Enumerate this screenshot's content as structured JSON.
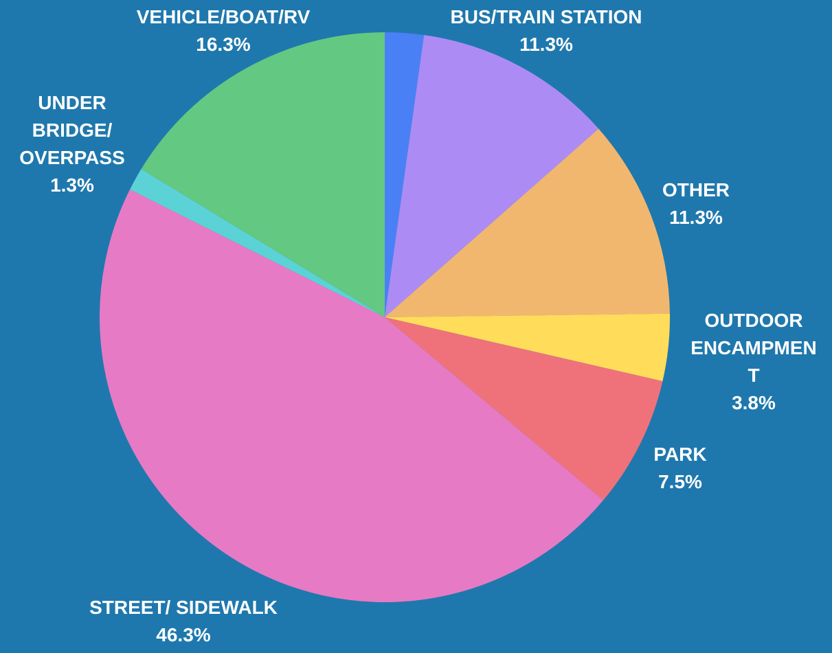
{
  "chart_data": {
    "type": "pie",
    "categories": [
      null,
      "BUS/TRAIN STATION",
      "OTHER",
      "OUTDOOR\nENCAMPMEN\nT",
      "PARK",
      "STREET/ SIDEWALK",
      "UNDER\nBRIDGE/\nOVERPASS",
      "VEHICLE/BOAT/RV"
    ],
    "values": [
      2.2,
      11.3,
      11.3,
      3.8,
      7.5,
      46.3,
      1.3,
      16.3
    ],
    "value_labels": [
      null,
      "11.3%",
      "11.3%",
      "3.8%",
      "7.5%",
      "46.3%",
      "1.3%",
      "16.3%"
    ],
    "colors": [
      "#4a80f5",
      "#ac8cf4",
      "#f2b76e",
      "#ffdd5a",
      "#ef727a",
      "#e77ac4",
      "#5bd3d6",
      "#63c882"
    ]
  }
}
